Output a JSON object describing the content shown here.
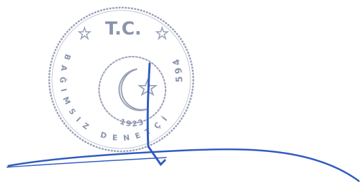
{
  "stamp": {
    "header": "T.C.",
    "ring_text": "BAĞIMSIZ DENETÇİ",
    "number": "594",
    "year": "1923"
  }
}
